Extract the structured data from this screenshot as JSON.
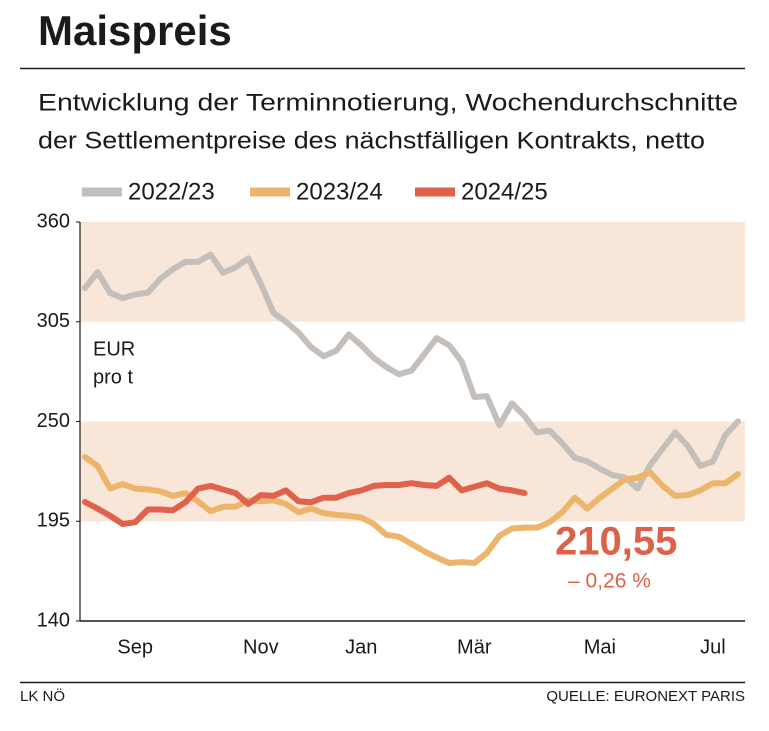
{
  "chart_data": {
    "type": "line",
    "title": "Maispreis",
    "subtitle": [
      "Entwicklung der Terminnotierung, Wochendurchschnitte",
      "der Settlementpreise des nächstfälligen Kontrakts, netto"
    ],
    "unit_label": [
      "EUR",
      "pro t"
    ],
    "annotations": [
      "210,55",
      "– 0,26 %"
    ],
    "credit": "LK NÖ",
    "source": "QUELLE: EURONEXT PARIS",
    "legend": "top",
    "categories": [
      null,
      null,
      null,
      null,
      "Sep",
      null,
      null,
      null,
      null,
      null,
      null,
      null,
      null,
      null,
      "Nov",
      null,
      null,
      null,
      null,
      null,
      null,
      null,
      "Jan",
      null,
      null,
      null,
      null,
      null,
      null,
      null,
      null,
      "Mär",
      null,
      null,
      null,
      null,
      null,
      null,
      null,
      null,
      null,
      "Mai",
      null,
      null,
      null,
      null,
      null,
      null,
      null,
      null,
      "Jul",
      null,
      null
    ],
    "ylim": [
      140,
      360
    ],
    "yticks": [
      140,
      195,
      250,
      305,
      360
    ],
    "series": [
      {
        "name": "2022/23",
        "color": "#c4bfbb",
        "values": [
          323.6,
          332.4,
          320.9,
          318,
          320,
          321,
          328.6,
          334,
          338,
          338,
          342,
          332,
          335,
          340,
          326,
          310,
          305,
          299,
          291,
          286,
          289,
          298,
          292,
          285,
          280,
          276,
          278,
          287,
          296,
          292,
          283,
          263.5,
          264,
          248,
          260,
          253,
          244,
          245,
          238,
          230,
          228,
          224,
          220.5,
          219,
          213,
          226,
          235,
          244,
          236.5,
          225.5,
          228,
          242.5,
          250
        ]
      },
      {
        "name": "2023/24",
        "color": "#edb56b",
        "values": [
          230.4,
          225.5,
          213,
          215.5,
          213,
          212.5,
          211.5,
          209,
          210.5,
          206,
          200.5,
          203,
          203,
          206.5,
          206,
          206.5,
          204.5,
          200,
          202,
          199.5,
          198.5,
          198,
          197,
          193.5,
          187.5,
          186.5,
          182.5,
          178.5,
          175,
          172,
          172.5,
          172,
          177.5,
          187,
          191,
          191.5,
          191.5,
          194.5,
          200,
          208,
          202,
          208,
          213,
          218,
          219,
          222,
          214.5,
          209,
          209.5,
          212,
          216,
          216,
          221
        ]
      },
      {
        "name": "2024/25",
        "color": "#e0624a",
        "values": [
          205.6,
          202,
          198,
          193.5,
          194.5,
          201.5,
          201.5,
          201,
          205.5,
          213,
          214.5,
          212.5,
          210.5,
          204.5,
          209.5,
          209,
          212,
          206,
          205.5,
          208,
          208,
          210.5,
          212,
          214.5,
          215,
          215,
          216,
          215,
          214.5,
          219,
          212,
          214,
          216,
          213,
          212,
          210.55,
          null,
          null,
          null,
          null,
          null,
          null,
          null,
          null,
          null,
          null,
          null,
          null,
          null,
          null,
          null,
          null,
          null
        ]
      }
    ]
  }
}
